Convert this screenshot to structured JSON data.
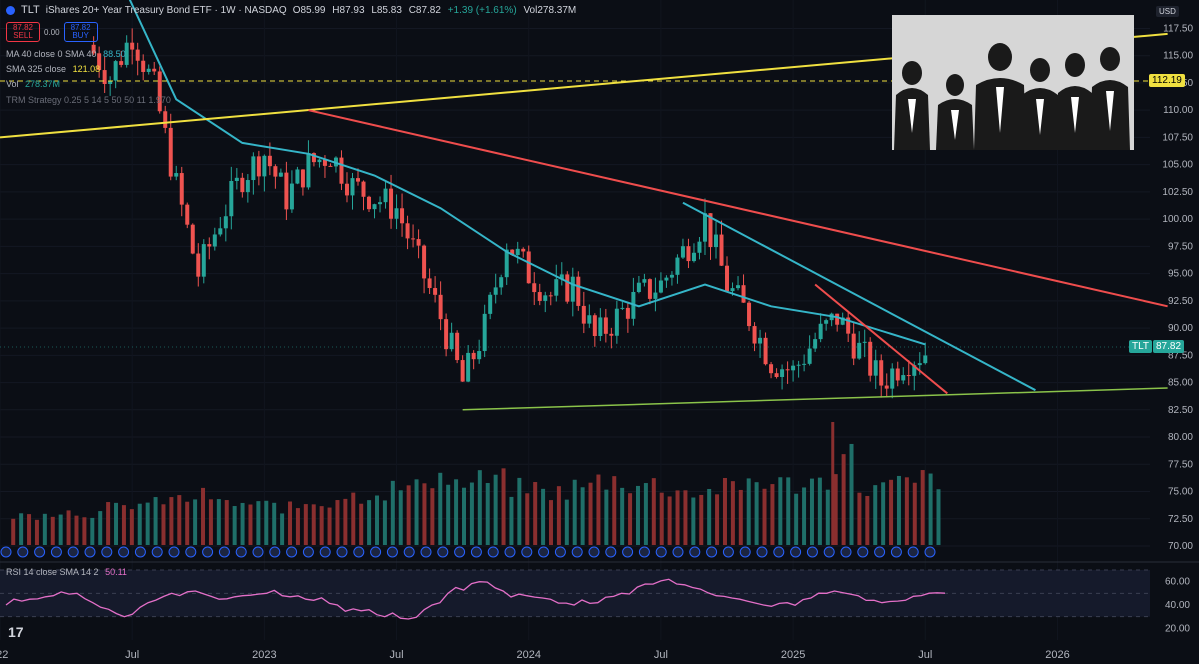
{
  "header": {
    "symbol": "TLT",
    "title": "iShares 20+ Year Treasury Bond ETF · 1W · NASDAQ",
    "open": "O85.99",
    "high": "H87.93",
    "low": "L85.83",
    "close": "C87.82",
    "change": "+1.39 (+1.61%)",
    "volume": "Vol278.37M"
  },
  "trade": {
    "sell_price": "87.82",
    "sell_label": "SELL",
    "spread": "0.00",
    "buy_price": "87.82",
    "buy_label": "BUY"
  },
  "indicators": {
    "ma40": "MA 40 close 0 SMA 40",
    "ma40_value": "88.50",
    "sma325": "SMA 325 close",
    "sma325_value": "121.08",
    "vol": "Vol",
    "vol_value": "278.37M",
    "trm": "TRM Strategy 0.25 5 14 5 50 50 11 1.970"
  },
  "price_axis": {
    "currency": "USD",
    "ticks": [
      "117.50",
      "115.00",
      "112.50",
      "110.00",
      "107.50",
      "105.00",
      "102.50",
      "100.00",
      "97.50",
      "95.00",
      "92.50",
      "90.00",
      "87.50",
      "85.00",
      "82.50",
      "80.00",
      "77.50",
      "75.00",
      "72.50",
      "70.00"
    ],
    "last_label": "TLT",
    "last_price": "87.82",
    "level_marker": "112.19"
  },
  "time_axis": {
    "labels": [
      "022",
      "Jul",
      "2023",
      "Jul",
      "2024",
      "Jul",
      "2025",
      "Jul",
      "2026"
    ]
  },
  "rsi": {
    "label": "RSI 14 close SMA 14 2",
    "value": "50.11",
    "ticks": [
      "60.00",
      "40.00",
      "20.00"
    ]
  },
  "logo_text": "17",
  "colors": {
    "up": "#26a69a",
    "down": "#ef5350",
    "ma": "#35b5c8",
    "upper_trend": "#f0e040",
    "down_trend": "#ef4d4d",
    "support": "#8bc34a",
    "rsi": "#e36fc8",
    "bg": "#0b0e15"
  },
  "chart_data": {
    "type": "candlestick",
    "interval": "1W",
    "ylim": [
      70,
      118
    ],
    "series_close": [
      [
        "2022-05",
        116
      ],
      [
        "2022-06",
        113
      ],
      [
        "2022-07",
        117
      ],
      [
        "2022-08",
        112
      ],
      [
        "2022-09",
        103
      ],
      [
        "2022-10",
        95
      ],
      [
        "2022-11",
        100
      ],
      [
        "2022-12",
        104
      ],
      [
        "2023-01",
        106
      ],
      [
        "2023-02",
        102
      ],
      [
        "2023-03",
        105
      ],
      [
        "2023-04",
        106
      ],
      [
        "2023-05",
        103
      ],
      [
        "2023-06",
        102
      ],
      [
        "2023-07",
        101
      ],
      [
        "2023-08",
        96
      ],
      [
        "2023-09",
        91
      ],
      [
        "2023-10",
        85
      ],
      [
        "2023-11",
        90
      ],
      [
        "2023-12",
        98
      ],
      [
        "2024-01",
        95
      ],
      [
        "2024-02",
        93
      ],
      [
        "2024-03",
        94
      ],
      [
        "2024-04",
        89
      ],
      [
        "2024-05",
        91
      ],
      [
        "2024-06",
        93
      ],
      [
        "2024-07",
        94
      ],
      [
        "2024-08",
        97
      ],
      [
        "2024-09",
        100
      ],
      [
        "2024-10",
        94
      ],
      [
        "2024-11",
        91
      ],
      [
        "2024-12",
        87
      ],
      [
        "2025-01",
        86
      ],
      [
        "2025-02",
        89
      ],
      [
        "2025-03",
        91
      ],
      [
        "2025-04",
        88
      ],
      [
        "2025-05",
        85
      ],
      [
        "2025-06",
        87
      ],
      [
        "2025-07",
        87.82
      ]
    ],
    "ma40": [
      [
        "2022-06",
        124
      ],
      [
        "2022-09",
        111
      ],
      [
        "2022-12",
        107
      ],
      [
        "2023-03",
        106
      ],
      [
        "2023-06",
        104
      ],
      [
        "2023-09",
        101
      ],
      [
        "2023-12",
        97
      ],
      [
        "2024-03",
        94
      ],
      [
        "2024-06",
        92
      ],
      [
        "2024-09",
        94
      ],
      [
        "2024-12",
        92
      ],
      [
        "2025-03",
        91
      ],
      [
        "2025-07",
        88.5
      ]
    ],
    "trendlines": [
      {
        "name": "upper",
        "from": [
          "2022-01",
          107.5
        ],
        "to": [
          "2026-06",
          117
        ]
      },
      {
        "name": "downtrend-long",
        "from": [
          "2023-03",
          110
        ],
        "to": [
          "2026-06",
          92
        ]
      },
      {
        "name": "downtrend-mid",
        "from": [
          "2024-08",
          101.5
        ],
        "to": [
          "2025-12",
          84.3
        ]
      },
      {
        "name": "downtrend-short",
        "from": [
          "2025-02",
          94
        ],
        "to": [
          "2025-08",
          84
        ]
      },
      {
        "name": "support",
        "from": [
          "2023-10",
          82.5
        ],
        "to": [
          "2026-06",
          84.5
        ]
      }
    ],
    "volume_levels": [
      0.25,
      0.3,
      0.28,
      0.35,
      0.4,
      0.45,
      0.5,
      0.4,
      0.38,
      0.35,
      0.42,
      0.5,
      0.55,
      0.6,
      0.75,
      0.65,
      0.7,
      0.6,
      0.55,
      0.62,
      0.7,
      0.65,
      0.6,
      0.55,
      0.6,
      0.7,
      0.65,
      0.68,
      1.0,
      0.6,
      0.65,
      0.72
    ],
    "rsi_values": [
      40,
      45,
      48,
      50,
      38,
      30,
      42,
      50,
      52,
      45,
      48,
      50,
      47,
      44,
      40,
      35,
      30,
      28,
      40,
      55,
      60,
      52,
      48,
      45,
      40,
      42,
      50,
      58,
      62,
      55,
      48,
      45,
      40,
      42,
      46,
      52,
      48,
      42,
      44,
      50.11
    ]
  }
}
